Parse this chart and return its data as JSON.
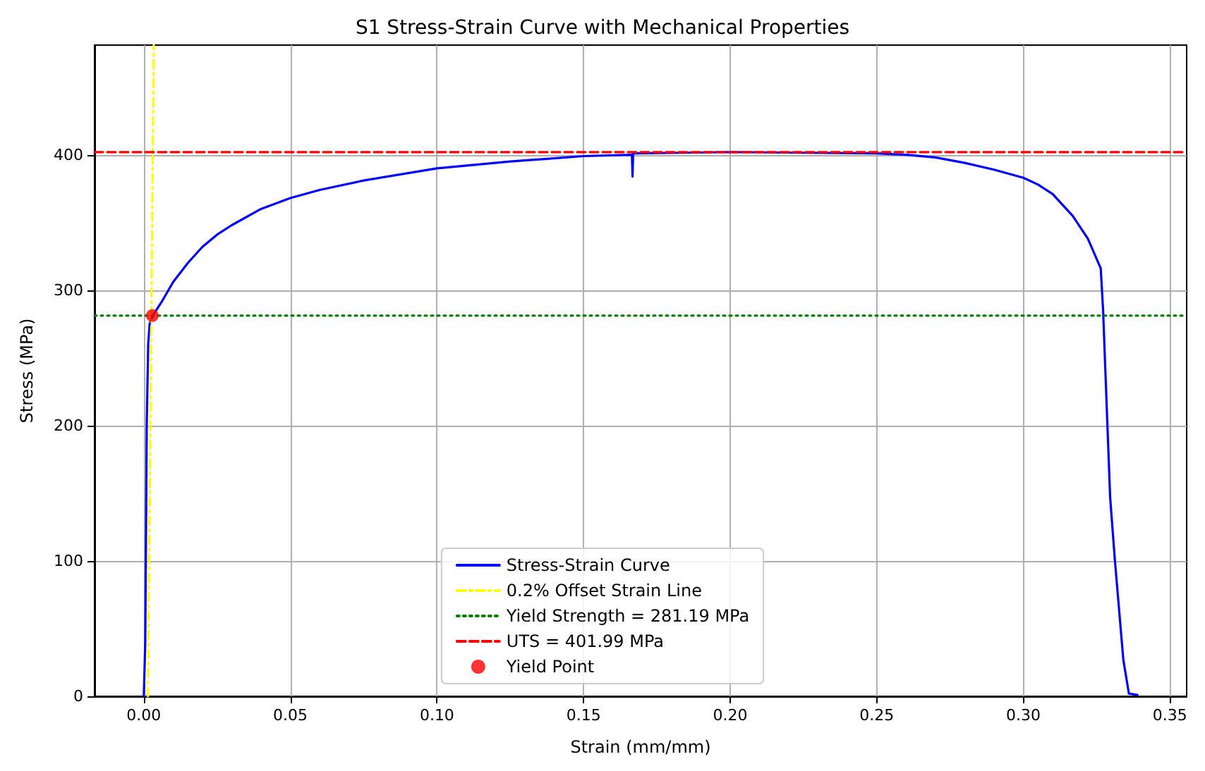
{
  "chart_data": {
    "type": "line",
    "title": "S1 Stress-Strain Curve with Mechanical Properties",
    "xlabel": "Strain (mm/mm)",
    "ylabel": "Stress (MPa)",
    "xlim": [
      -0.0168,
      0.3557
    ],
    "ylim": [
      0,
      481
    ],
    "xticks": [
      {
        "value": 0,
        "label": "0.00"
      },
      {
        "value": 0.05,
        "label": "0.05"
      },
      {
        "value": 0.1,
        "label": "0.10"
      },
      {
        "value": 0.15,
        "label": "0.15"
      },
      {
        "value": 0.2,
        "label": "0.20"
      },
      {
        "value": 0.25,
        "label": "0.25"
      },
      {
        "value": 0.3,
        "label": "0.30"
      },
      {
        "value": 0.35,
        "label": "0.35"
      }
    ],
    "yticks": [
      0,
      100,
      200,
      300,
      400
    ],
    "grid": true,
    "legend": "bottom",
    "series": [
      {
        "name": "Stress-Strain Curve",
        "color": "#0000ff",
        "line_style": "solid",
        "marker": "none",
        "x": [
          0,
          0.0005,
          0.001,
          0.0015,
          0.002,
          0.003,
          0.006,
          0.01,
          0.015,
          0.02,
          0.025,
          0.03,
          0.04,
          0.05,
          0.06,
          0.075,
          0.1,
          0.125,
          0.15,
          0.1665,
          0.1667,
          0.1669,
          0.2,
          0.25,
          0.26,
          0.27,
          0.28,
          0.29,
          0.3,
          0.305,
          0.31,
          0.3168,
          0.322,
          0.3264,
          0.3272,
          0.3296,
          0.3312,
          0.3341,
          0.336,
          0.3389
        ],
        "values": [
          0,
          40,
          200,
          260,
          275,
          281,
          291,
          306,
          320,
          332,
          341,
          348,
          360,
          368,
          374,
          381,
          390,
          395,
          399,
          400,
          384,
          401,
          402,
          401,
          400,
          398,
          394,
          389,
          383,
          378,
          371,
          355,
          338,
          316,
          285,
          147,
          101,
          27,
          2,
          1
        ]
      },
      {
        "name": "0.2% Offset Strain Line",
        "color": "#ffff00",
        "line_style": "dashdot",
        "marker": "none",
        "x": [
          0.0014,
          0.0034
        ],
        "values": [
          0,
          481
        ]
      },
      {
        "name": "Yield Strength = 281.19 MPa",
        "color": "#008000",
        "line_style": "dotted",
        "marker": "none",
        "x": [
          -0.0168,
          0.3557
        ],
        "values": [
          281.19,
          281.19
        ]
      },
      {
        "name": "UTS = 401.99 MPa",
        "color": "#ff0000",
        "line_style": "dashed",
        "marker": "none",
        "x": [
          -0.0168,
          0.3557
        ],
        "values": [
          401.99,
          401.99
        ]
      },
      {
        "name": "Yield Point",
        "type": "scatter",
        "color": "#ff0000",
        "marker": "circle",
        "x": [
          0.0029
        ],
        "values": [
          281.19
        ]
      }
    ]
  }
}
